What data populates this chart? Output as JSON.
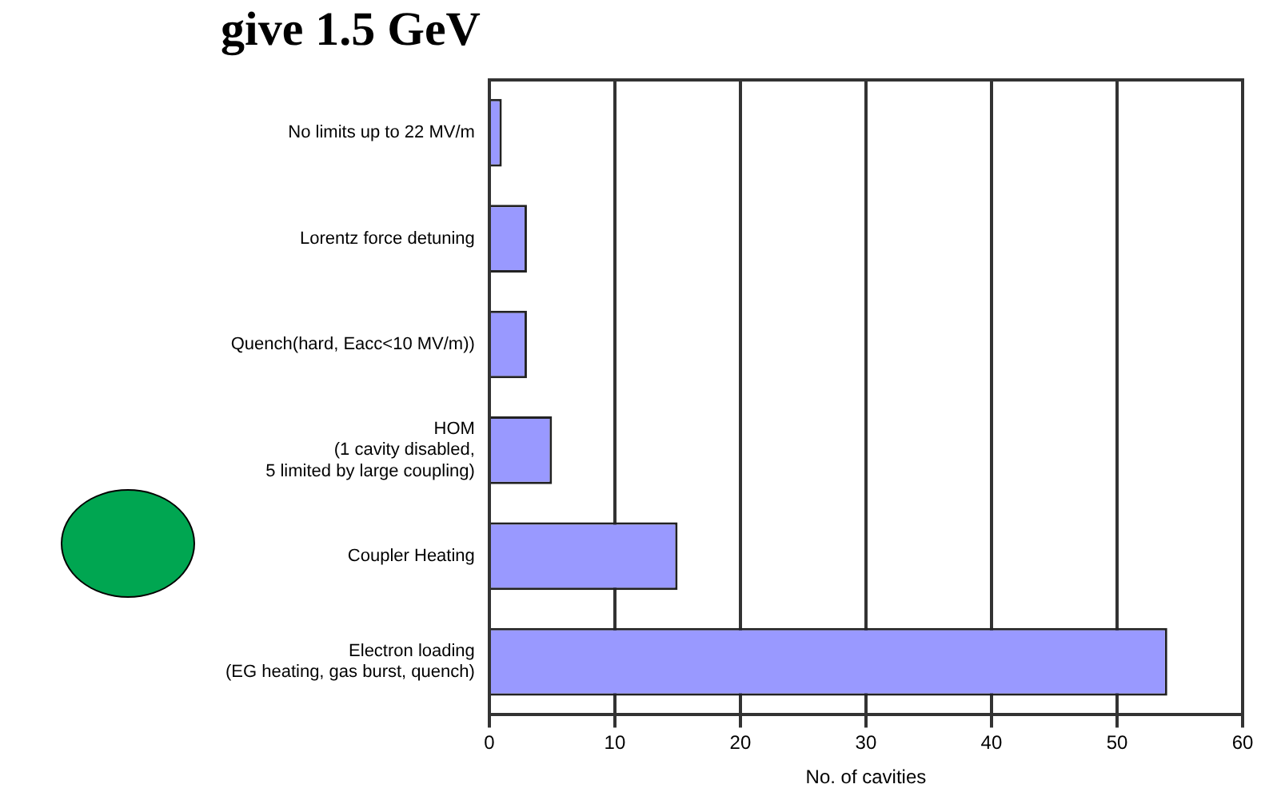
{
  "chart_data": {
    "type": "bar",
    "orientation": "horizontal",
    "title": "give 1.5 GeV",
    "xlabel": "No. of cavities",
    "categories": [
      "No limits up to 22 MV/m",
      "Lorentz force detuning",
      "Quench(hard, Eacc<10 MV/m))",
      "HOM\n(1 cavity disabled,\n5 limited by large coupling)",
      "Coupler Heating",
      "Electron loading\n(EG heating, gas burst, quench)"
    ],
    "values": [
      1,
      3,
      3,
      5,
      15,
      54
    ],
    "color": "#9999ff",
    "xlim": [
      0,
      60
    ],
    "xticks": [
      0,
      10,
      20,
      30,
      40,
      50,
      60
    ],
    "grid": "x",
    "legend": false
  }
}
